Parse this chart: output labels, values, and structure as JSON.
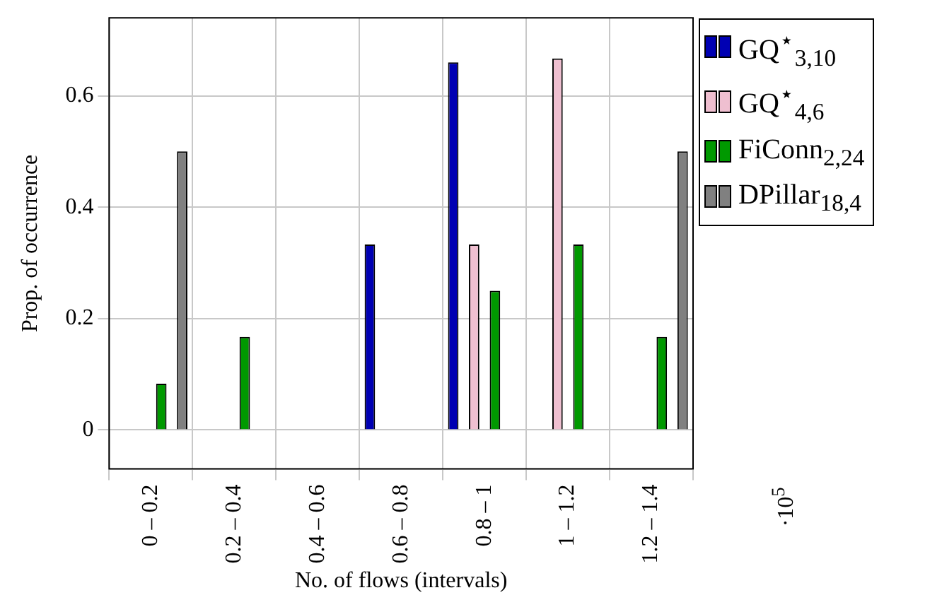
{
  "chart_data": {
    "type": "bar",
    "xlabel": "No. of flows (intervals)",
    "ylabel": "Prop. of occurrence",
    "categories": [
      "0 – 0.2",
      "0.2 – 0.4",
      "0.4 – 0.6",
      "0.6 – 0.8",
      "0.8 – 1",
      "1 – 1.2",
      "1.2 – 1.4"
    ],
    "series": [
      {
        "name": "GQ$^{⋆}$$_{3,10}$",
        "color": "#0000b3",
        "values": [
          0,
          0,
          0,
          0.333,
          0.66,
          0,
          0
        ]
      },
      {
        "name": "GQ$^{⋆}$$_{4,6}$",
        "color": "#efbfd0",
        "values": [
          0,
          0,
          0,
          0,
          0.333,
          0.667,
          0
        ]
      },
      {
        "name": "FiConn$_{2,24}$",
        "color": "#009900",
        "values": [
          0.083,
          0.167,
          0,
          0,
          0.25,
          0.333,
          0.167
        ]
      },
      {
        "name": "DPillar$_{18,4}$",
        "color": "#808080",
        "values": [
          0.5,
          0,
          0,
          0,
          0,
          0,
          0.5
        ]
      }
    ],
    "ylim": [
      -0.07,
      0.74
    ],
    "yticks": [
      0,
      0.2,
      0.4,
      0.6
    ],
    "grid": true,
    "legend": "top right",
    "annotations": [
      "·10$^{5}$"
    ]
  }
}
